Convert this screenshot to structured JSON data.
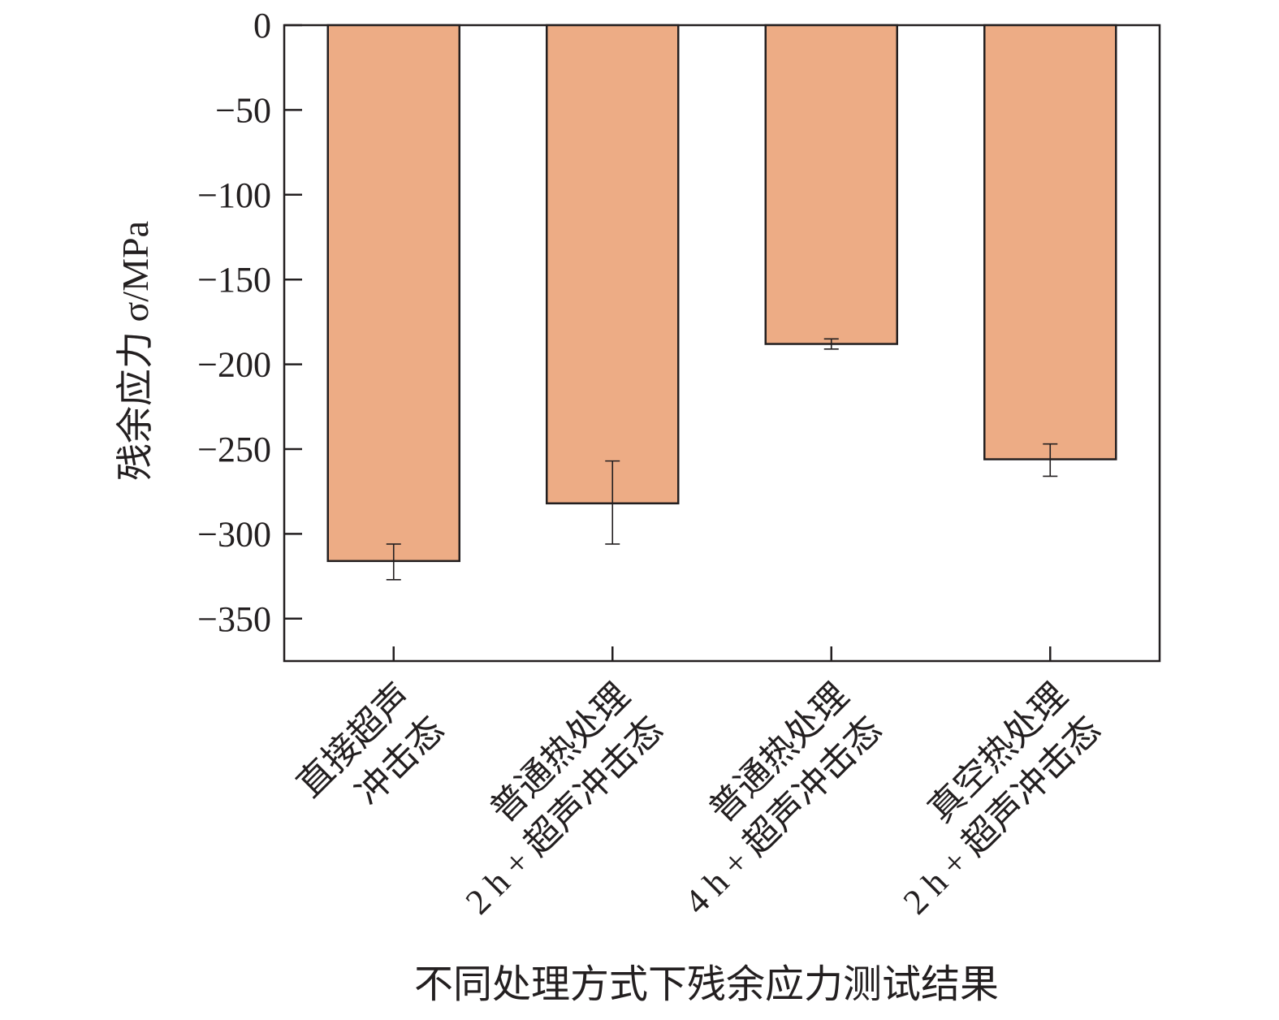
{
  "chart_data": {
    "type": "bar",
    "categories": [
      [
        "直接超声",
        "冲击态"
      ],
      [
        "普通热处理",
        "2 h + 超声冲击态"
      ],
      [
        "普通热处理",
        "4 h + 超声冲击态"
      ],
      [
        "真空热处理",
        "2 h + 超声冲击态"
      ]
    ],
    "values": [
      -316,
      -282,
      -188,
      -256
    ],
    "errors": [
      {
        "low": -327,
        "high": -306
      },
      {
        "low": -306,
        "high": -257
      },
      {
        "low": -191,
        "high": -185
      },
      {
        "low": -266,
        "high": -247
      }
    ],
    "ylabel": "残余应力 σ/MPa",
    "ylim": [
      -375,
      0
    ],
    "yticks": [
      0,
      -50,
      -100,
      -150,
      -200,
      -250,
      -300,
      -350
    ],
    "ytick_labels": [
      "0",
      "−50",
      "−100",
      "−150",
      "−200",
      "−250",
      "−300",
      "−350"
    ],
    "caption": "不同处理方式下残余应力测试结果",
    "grid": false,
    "bar_color": "#EDAC85",
    "edge_color": "#231F20"
  }
}
